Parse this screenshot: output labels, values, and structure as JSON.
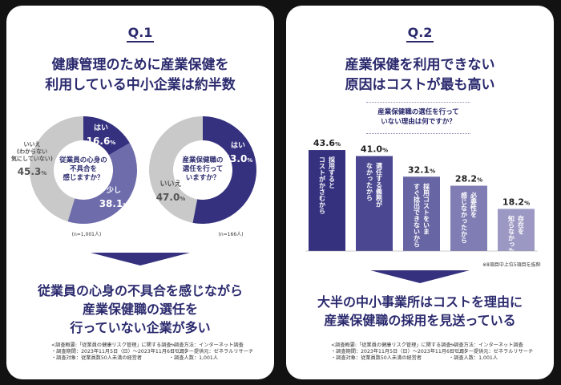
{
  "left": {
    "q_label": "Q.1",
    "headline": [
      "健康管理のために産業保健を",
      "利用している中小企業は約半数"
    ],
    "conclusion": [
      "従業員の心身の不具合を感じながら",
      "産業保健職の選任を",
      "行っていない企業が多い"
    ],
    "footer_col1": [
      "<調査概要:「従業員の健康リスク管理」に関する調査>",
      "・調査期間：2023年11月5日（日）〜2023年11月6日（月）",
      "・調査対象：従業員数50人未満の経営者"
    ],
    "footer_col2": [
      "・調査方法：インターネット調査",
      "・モニター提供元：ゼネラルリサーチ",
      "・調査人数：1,001人"
    ]
  },
  "right": {
    "q_label": "Q.2",
    "headline": [
      "産業保健を利用できない",
      "原因はコストが最も高い"
    ],
    "callout": [
      "産業保健職の選任を行って",
      "いない理由は何ですか？"
    ],
    "note": "※8項目中上位5項目を抜粋",
    "conclusion": [
      "大半の中小事業所はコストを理由に",
      "産業保健職の採用を見送っている"
    ],
    "footer_col1": [
      "<調査概要:「従業員の健康リスク管理」に関する調査>",
      "・調査期間：2023年11月5日（日）〜2023年11月6日（月）",
      "・調査対象：従業員数50人未満の経営者"
    ],
    "footer_col2": [
      "・調査方法：インターネット調査",
      "・モニター提供元：ゼネラルリサーチ",
      "・調査人数：1,001人"
    ]
  },
  "chart_data": [
    {
      "type": "pie",
      "center_label": [
        "従業員の心身の",
        "不具合を",
        "感じますか？"
      ],
      "slices": [
        {
          "label": "はい",
          "value": 16.6,
          "color": "#35317f"
        },
        {
          "label": "少し",
          "value": 38.1,
          "color": "#6e6cab"
        },
        {
          "label": "いいえ (わからない 気にしていない)",
          "label_lines": [
            "いいえ",
            "(わからない",
            "気にしていない)"
          ],
          "value": 45.3,
          "color": "#c9c9c9"
        }
      ],
      "n_label": "(n=1,001人)"
    },
    {
      "type": "pie",
      "center_label": [
        "産業保健職の",
        "選任を行って",
        "いますか？"
      ],
      "slices": [
        {
          "label": "はい",
          "value": 53.0,
          "color": "#35317f"
        },
        {
          "label": "いいえ",
          "value": 47.0,
          "color": "#c9c9c9"
        }
      ],
      "n_label": "(n=166人)"
    },
    {
      "type": "bar",
      "categories": [
        "採用すると コストがかさむから",
        "選任する義務が なかったから",
        "採用コストをいま すぐ捻出できないから",
        "必要性を 感じなかったから",
        "存在を 知らなかった"
      ],
      "category_lines": [
        [
          "採用すると",
          "コストがかさむから"
        ],
        [
          "選任する義務が",
          "なかったから"
        ],
        [
          "採用コストをいま",
          "すぐ捻出できないから"
        ],
        [
          "必要性を",
          "感じなかったから"
        ],
        [
          "存在を",
          "知らなかった"
        ]
      ],
      "values": [
        43.6,
        41.0,
        32.1,
        28.2,
        18.2
      ],
      "value_labels": [
        "43.6",
        "41.0",
        "32.1",
        "28.2",
        "18.2"
      ],
      "unit": "%",
      "colors": [
        "#35317f",
        "#4b4891",
        "#6865a4",
        "#7f7db3",
        "#9b99c4"
      ],
      "ylim": [
        0,
        45
      ]
    }
  ]
}
